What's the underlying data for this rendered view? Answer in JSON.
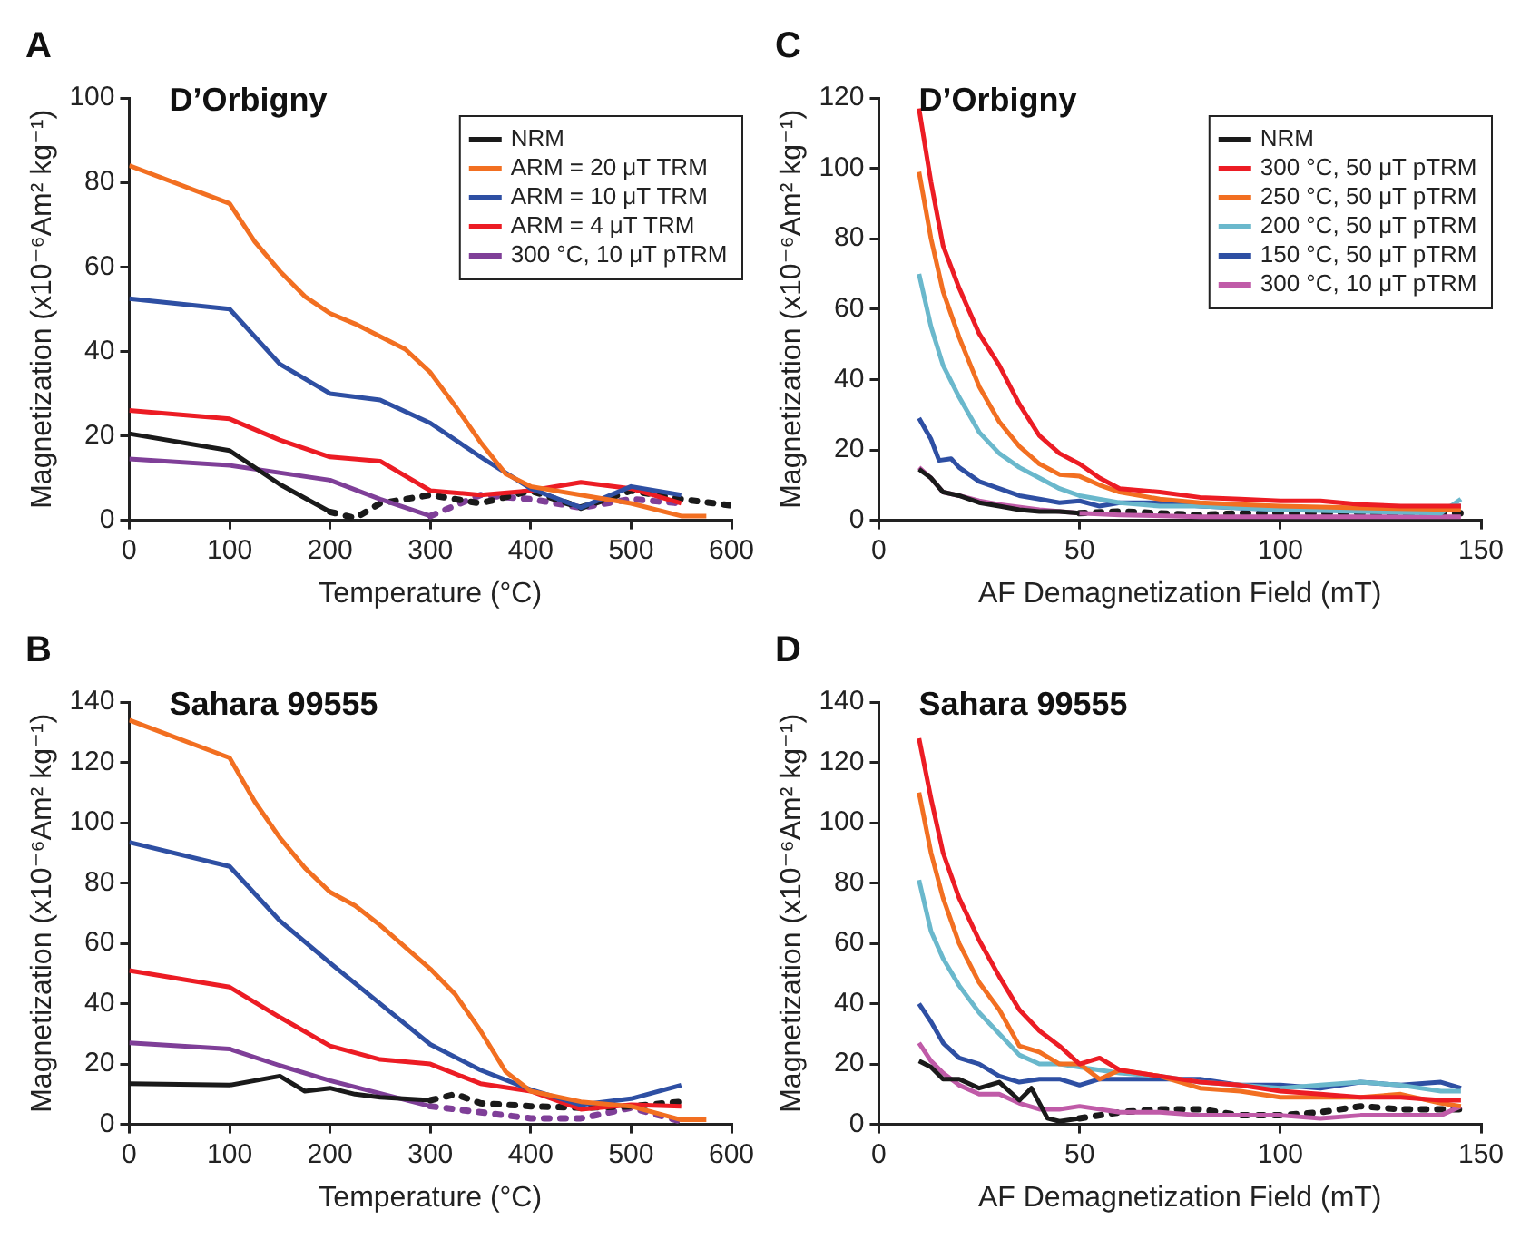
{
  "chart_data": [
    {
      "type": "line",
      "title": "D’Orbigny",
      "annotations": [
        "A"
      ],
      "xlabel": "Temperature (°C)",
      "ylabel": "Magnetization (x10⁻⁶Am² kg⁻¹)",
      "xlim": [
        0,
        600
      ],
      "xticks": [
        0,
        100,
        200,
        300,
        400,
        500,
        600
      ],
      "ylim": [
        0,
        100
      ],
      "yticks": [
        0,
        20,
        40,
        60,
        80,
        100
      ],
      "grid": false,
      "legend": "top right",
      "marker": "none",
      "series": [
        {
          "name": "NRM",
          "color": "#1a1a1a",
          "line_style": "solid",
          "x": [
            0,
            100,
            150,
            200
          ],
          "values": [
            20.5,
            16.5,
            8.5,
            2
          ]
        },
        {
          "name": "ARM = 20 μT TRM",
          "color": "#f26f21",
          "line_style": "solid",
          "x": [
            0,
            100,
            125,
            150,
            175,
            200,
            225,
            250,
            275,
            300,
            325,
            350,
            375,
            400,
            450,
            500,
            550,
            575
          ],
          "values": [
            84,
            75,
            66,
            59,
            53,
            49,
            46.5,
            43.5,
            40.5,
            35,
            27,
            18.5,
            11,
            8,
            6,
            4,
            1,
            1
          ]
        },
        {
          "name": "ARM = 10 μT TRM",
          "color": "#2e4fa3",
          "line_style": "solid",
          "x": [
            0,
            100,
            150,
            200,
            250,
            300,
            350,
            400,
            450,
            500,
            550
          ],
          "values": [
            52.5,
            50,
            37,
            30,
            28.5,
            23,
            15,
            7.5,
            3,
            8,
            6
          ]
        },
        {
          "name": "ARM = 4 μT TRM",
          "color": "#ec1c24",
          "line_style": "solid",
          "x": [
            0,
            100,
            150,
            200,
            250,
            300,
            350,
            400,
            450,
            500,
            550
          ],
          "values": [
            26,
            24,
            19,
            15,
            14,
            7,
            6,
            7,
            9,
            7.5,
            4
          ]
        },
        {
          "name": "300 °C, 10 μT pTRM",
          "color": "#7f3f98",
          "line_style": "solid",
          "x": [
            0,
            100,
            200,
            250,
            300
          ],
          "values": [
            14.5,
            13,
            9.5,
            5,
            1
          ]
        },
        {
          "color": "#1a1a1a",
          "line_style": "dotted",
          "x": [
            200,
            225,
            250,
            300,
            350,
            400,
            450,
            500,
            550,
            600
          ],
          "values": [
            2,
            0.5,
            4,
            6,
            4,
            7,
            3,
            7,
            5,
            3.5
          ]
        },
        {
          "color": "#7f3f98",
          "line_style": "dotted",
          "x": [
            300,
            350,
            400,
            450,
            500,
            550
          ],
          "values": [
            1,
            6,
            5,
            3,
            5,
            4
          ]
        }
      ]
    },
    {
      "type": "line",
      "title": "D’Orbigny",
      "annotations": [
        "C"
      ],
      "xlabel": "AF Demagnetization Field (mT)",
      "ylabel": "Magnetization (x10⁻⁶Am² kg⁻¹)",
      "xlim": [
        0,
        150
      ],
      "xticks": [
        0,
        50,
        100,
        150
      ],
      "ylim": [
        0,
        120
      ],
      "yticks": [
        0,
        20,
        40,
        60,
        80,
        100,
        120
      ],
      "grid": false,
      "legend": "top right",
      "marker": "none",
      "series": [
        {
          "name": "NRM",
          "color": "#1a1a1a",
          "line_style": "solid",
          "x": [
            10,
            13,
            16,
            20,
            25,
            30,
            35,
            40,
            45,
            50
          ],
          "values": [
            14.5,
            12,
            8,
            7,
            5,
            4,
            3,
            2.5,
            2.5,
            2
          ]
        },
        {
          "name": "300 °C, 50 μT pTRM",
          "color": "#ec1c24",
          "line_style": "solid",
          "x": [
            10,
            13,
            16,
            20,
            25,
            30,
            35,
            40,
            45,
            50,
            55,
            60,
            70,
            80,
            90,
            100,
            110,
            120,
            130,
            145
          ],
          "values": [
            117,
            96,
            78,
            66,
            53,
            44,
            33,
            24,
            19,
            16,
            12,
            9,
            8,
            6.5,
            6,
            5.5,
            5.5,
            4.5,
            4,
            4
          ]
        },
        {
          "name": "250 °C, 50 μT pTRM",
          "color": "#f26f21",
          "line_style": "solid",
          "x": [
            10,
            13,
            16,
            20,
            25,
            30,
            35,
            40,
            45,
            50,
            55,
            60,
            70,
            80,
            90,
            100,
            120,
            145
          ],
          "values": [
            99,
            80,
            65,
            52,
            38,
            28,
            21,
            16,
            13,
            12.5,
            10,
            8,
            6,
            5,
            4.5,
            4,
            3.5,
            3
          ]
        },
        {
          "name": "200 °C, 50 μT pTRM",
          "color": "#6ab8cc",
          "line_style": "solid",
          "x": [
            10,
            13,
            16,
            20,
            25,
            30,
            35,
            40,
            45,
            50,
            60,
            70,
            80,
            100,
            120,
            140,
            145
          ],
          "values": [
            70,
            55,
            44,
            35,
            25,
            19,
            15,
            12,
            9,
            7,
            5,
            4,
            4,
            3,
            2.5,
            2,
            6
          ]
        },
        {
          "name": "150 °C, 50 μT pTRM",
          "color": "#2e4fa3",
          "line_style": "solid",
          "x": [
            10,
            13,
            15,
            18,
            20,
            25,
            30,
            35,
            40,
            45,
            50,
            55,
            60,
            70,
            80,
            100,
            120,
            145
          ],
          "values": [
            29,
            23,
            17,
            17.5,
            15,
            11,
            9,
            7,
            6,
            5,
            5.5,
            4,
            5,
            5,
            4,
            3,
            3,
            4
          ]
        },
        {
          "name": "300 °C, 10 μT pTRM",
          "color": "#c05ba8",
          "line_style": "solid",
          "x": [
            10,
            13,
            16,
            20,
            25,
            30,
            40,
            50,
            60,
            80,
            100,
            120,
            145
          ],
          "values": [
            15,
            12,
            8,
            7,
            5.5,
            4.5,
            3,
            2,
            1.5,
            1,
            1,
            1,
            1
          ]
        },
        {
          "color": "#1a1a1a",
          "line_style": "dotted",
          "x": [
            50,
            60,
            70,
            80,
            90,
            100,
            110,
            120,
            130,
            145
          ],
          "values": [
            2,
            2.5,
            2,
            1.5,
            2,
            2,
            2,
            2,
            1.5,
            2
          ]
        }
      ]
    },
    {
      "type": "line",
      "title": "Sahara 99555",
      "annotations": [
        "B"
      ],
      "xlabel": "Temperature (°C)",
      "ylabel": "Magnetization (x10⁻⁶Am² kg⁻¹)",
      "xlim": [
        0,
        600
      ],
      "xticks": [
        0,
        100,
        200,
        300,
        400,
        500,
        600
      ],
      "ylim": [
        0,
        140
      ],
      "yticks": [
        0,
        20,
        40,
        60,
        80,
        100,
        120,
        140
      ],
      "grid": false,
      "marker": "none",
      "series": [
        {
          "color": "#1a1a1a",
          "line_style": "solid",
          "x": [
            0,
            100,
            150,
            175,
            200,
            225,
            250,
            300
          ],
          "values": [
            13.5,
            13,
            16,
            11,
            12,
            10,
            9,
            8
          ]
        },
        {
          "color": "#f26f21",
          "line_style": "solid",
          "x": [
            0,
            100,
            125,
            150,
            175,
            200,
            225,
            250,
            300,
            325,
            350,
            375,
            400,
            450,
            500,
            550,
            575
          ],
          "values": [
            134,
            121.5,
            107,
            95,
            85,
            77,
            72.5,
            66,
            51.5,
            43,
            31,
            17.5,
            11,
            7.5,
            6,
            1.5,
            1.5
          ]
        },
        {
          "color": "#2e4fa3",
          "line_style": "solid",
          "x": [
            0,
            100,
            150,
            200,
            250,
            300,
            350,
            400,
            450,
            500,
            550
          ],
          "values": [
            93.5,
            85.5,
            67.5,
            53.5,
            40,
            26.5,
            18,
            11.5,
            6.5,
            8.5,
            13
          ]
        },
        {
          "color": "#ec1c24",
          "line_style": "solid",
          "x": [
            0,
            100,
            150,
            200,
            250,
            300,
            350,
            400,
            450,
            500,
            550
          ],
          "values": [
            51,
            45.5,
            35.5,
            26,
            21.5,
            20,
            13.5,
            11,
            5,
            6.5,
            6
          ]
        },
        {
          "color": "#7f3f98",
          "line_style": "solid",
          "x": [
            0,
            100,
            150,
            200,
            300
          ],
          "values": [
            27,
            25,
            19.5,
            14.5,
            6
          ]
        },
        {
          "color": "#1a1a1a",
          "line_style": "dotted",
          "x": [
            300,
            325,
            350,
            400,
            450,
            500,
            550
          ],
          "values": [
            8,
            10,
            7,
            6,
            5.5,
            6,
            7.5
          ]
        },
        {
          "color": "#7f3f98",
          "line_style": "dotted",
          "x": [
            300,
            350,
            400,
            450,
            500,
            550
          ],
          "values": [
            6,
            4,
            2,
            2,
            5.5,
            1
          ]
        }
      ]
    },
    {
      "type": "line",
      "title": "Sahara 99555",
      "annotations": [
        "D"
      ],
      "xlabel": "AF Demagnetization Field (mT)",
      "ylabel": "Magnetization (x10⁻⁶Am² kg⁻¹)",
      "xlim": [
        0,
        150
      ],
      "xticks": [
        0,
        50,
        100,
        150
      ],
      "ylim": [
        0,
        140
      ],
      "yticks": [
        0,
        20,
        40,
        60,
        80,
        100,
        120,
        140
      ],
      "grid": false,
      "marker": "none",
      "series": [
        {
          "color": "#1a1a1a",
          "line_style": "solid",
          "x": [
            10,
            13,
            16,
            20,
            25,
            30,
            35,
            38,
            42,
            45,
            50
          ],
          "values": [
            21,
            19,
            15,
            15,
            12,
            14,
            8,
            12,
            2,
            1,
            2
          ]
        },
        {
          "color": "#ec1c24",
          "line_style": "solid",
          "x": [
            10,
            13,
            16,
            20,
            25,
            30,
            35,
            40,
            45,
            50,
            55,
            60,
            70,
            80,
            90,
            100,
            110,
            120,
            130,
            140,
            145
          ],
          "values": [
            128,
            108,
            90,
            75,
            61,
            49,
            38,
            31,
            26,
            20,
            22,
            18,
            16,
            14,
            13,
            11,
            10,
            9,
            9,
            8,
            8
          ]
        },
        {
          "color": "#f26f21",
          "line_style": "solid",
          "x": [
            10,
            13,
            16,
            20,
            25,
            30,
            35,
            40,
            45,
            50,
            55,
            60,
            70,
            80,
            90,
            100,
            110,
            120,
            130,
            140,
            145
          ],
          "values": [
            110,
            90,
            75,
            60,
            47,
            38,
            26,
            24,
            20,
            20,
            15,
            18,
            16,
            12,
            11,
            9,
            9,
            9,
            10,
            7,
            6
          ]
        },
        {
          "color": "#6ab8cc",
          "line_style": "solid",
          "x": [
            10,
            13,
            16,
            20,
            25,
            30,
            35,
            40,
            45,
            50,
            60,
            70,
            80,
            90,
            100,
            110,
            120,
            130,
            140,
            145
          ],
          "values": [
            81,
            64,
            55,
            46,
            37,
            30,
            23,
            20,
            20,
            19,
            17,
            16,
            14,
            13,
            12,
            13,
            14,
            13,
            11,
            11
          ]
        },
        {
          "color": "#2e4fa3",
          "line_style": "solid",
          "x": [
            10,
            13,
            16,
            20,
            25,
            30,
            35,
            40,
            45,
            50,
            55,
            60,
            70,
            80,
            90,
            100,
            110,
            120,
            130,
            140,
            145
          ],
          "values": [
            40,
            34,
            27,
            22,
            20,
            16,
            14,
            15,
            15,
            13,
            15,
            15,
            15,
            15,
            13,
            13,
            12,
            14,
            13,
            14,
            12
          ]
        },
        {
          "color": "#c05ba8",
          "line_style": "solid",
          "x": [
            10,
            13,
            16,
            20,
            25,
            30,
            35,
            40,
            45,
            50,
            60,
            70,
            80,
            90,
            100,
            110,
            120,
            130,
            140,
            145
          ],
          "values": [
            27,
            21,
            17,
            13,
            10,
            10,
            7,
            5,
            5,
            6,
            4,
            4,
            3,
            3,
            3,
            2,
            3,
            3,
            3,
            6
          ]
        },
        {
          "color": "#1a1a1a",
          "line_style": "dotted",
          "x": [
            50,
            60,
            70,
            80,
            90,
            100,
            110,
            120,
            130,
            140,
            145
          ],
          "values": [
            2,
            4,
            5,
            5,
            3,
            3,
            4,
            6,
            5,
            5,
            5
          ]
        }
      ]
    }
  ]
}
